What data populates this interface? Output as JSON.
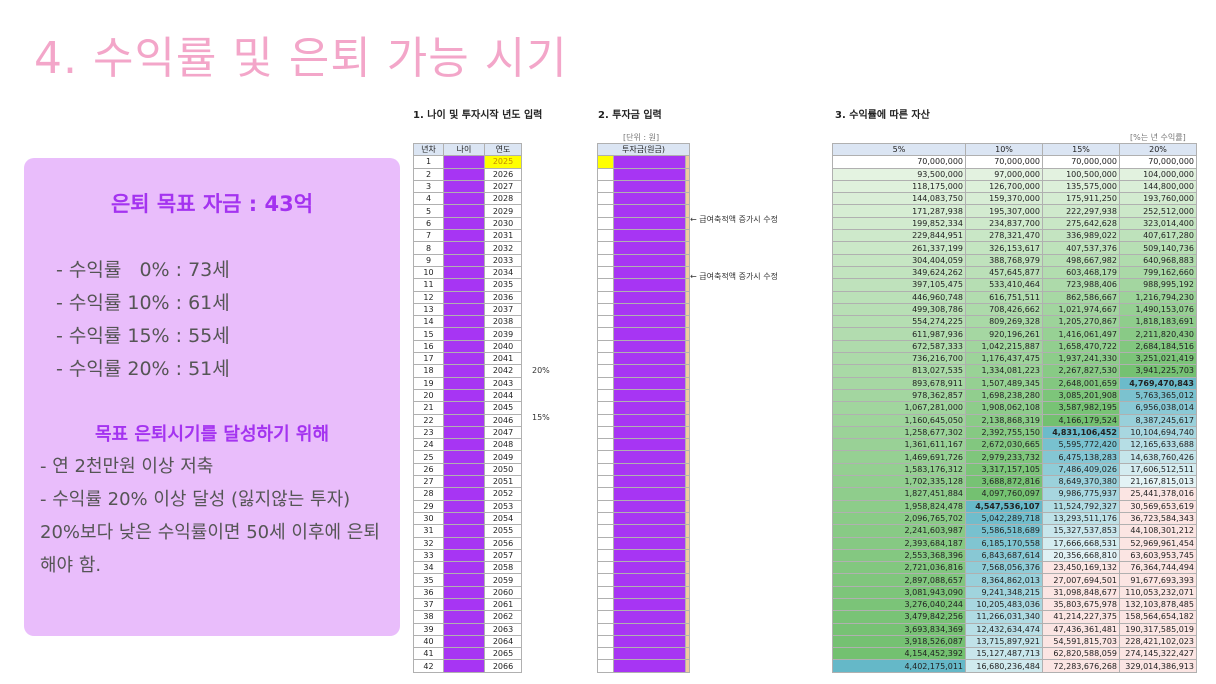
{
  "title": "4. 수익률 및 은퇴 가능 시기",
  "panel": {
    "goal": "은퇴 목표 자금 : 43억",
    "rates": [
      "- 수익률   0% : 73세",
      "- 수익률 10% : 61세",
      "- 수익률 15% : 55세",
      "- 수익률 20% : 51세"
    ],
    "plan_heading": "목표 은퇴시기를 달성하기 위해",
    "plan_line1": "- 연 2천만원 이상 저축",
    "plan_line2": "  - 수익률 20% 이상 달성 (잃지않는 투자) 20%보다 낮은 수익률이면 50세 이후에 은퇴해야 함."
  },
  "sections": {
    "s1": "1. 나이 및 투자시작 년도 입력",
    "s2": "2. 투자금 입력",
    "s3": "3. 수익률에 따른 자산"
  },
  "unit_label": "[단위 : 원]",
  "rate_note": "[%는 년 수익률]",
  "t1_headers": [
    "년차",
    "나이",
    "연도"
  ],
  "t2_header": "투자금(원금)",
  "t3_headers": [
    "5%",
    "10%",
    "15%",
    "20%"
  ],
  "annotations": {
    "a1": "← 급여축적액 증가시 수정",
    "a2": "← 급여축적액 증가시 수정",
    "r20": "20%",
    "r15": "15%"
  },
  "colors": {
    "purple": "#a735f3",
    "yellow": "#ffff00",
    "header": "#dbe5f3",
    "green_light": "#e9f5e6",
    "green_dark": "#72c06f",
    "teal_light": "#e6f4f6",
    "teal_dark": "#63b7c7",
    "red_light": "#fbe5e3"
  },
  "rows": [
    {
      "n": "1",
      "y": "2025",
      "v": [
        "70,000,000",
        "70,000,000",
        "70,000,000",
        "70,000,000"
      ]
    },
    {
      "n": "2",
      "y": "2026",
      "v": [
        "93,500,000",
        "97,000,000",
        "100,500,000",
        "104,000,000"
      ]
    },
    {
      "n": "3",
      "y": "2027",
      "v": [
        "118,175,000",
        "126,700,000",
        "135,575,000",
        "144,800,000"
      ]
    },
    {
      "n": "4",
      "y": "2028",
      "v": [
        "144,083,750",
        "159,370,000",
        "175,911,250",
        "193,760,000"
      ]
    },
    {
      "n": "5",
      "y": "2029",
      "v": [
        "171,287,938",
        "195,307,000",
        "222,297,938",
        "252,512,000"
      ]
    },
    {
      "n": "6",
      "y": "2030",
      "v": [
        "199,852,334",
        "234,837,700",
        "275,642,628",
        "323,014,400"
      ]
    },
    {
      "n": "7",
      "y": "2031",
      "v": [
        "229,844,951",
        "278,321,470",
        "336,989,022",
        "407,617,280"
      ]
    },
    {
      "n": "8",
      "y": "2032",
      "v": [
        "261,337,199",
        "326,153,617",
        "407,537,376",
        "509,140,736"
      ]
    },
    {
      "n": "9",
      "y": "2033",
      "v": [
        "304,404,059",
        "388,768,979",
        "498,667,982",
        "640,968,883"
      ]
    },
    {
      "n": "10",
      "y": "2034",
      "v": [
        "349,624,262",
        "457,645,877",
        "603,468,179",
        "799,162,660"
      ]
    },
    {
      "n": "11",
      "y": "2035",
      "v": [
        "397,105,475",
        "533,410,464",
        "723,988,406",
        "988,995,192"
      ]
    },
    {
      "n": "12",
      "y": "2036",
      "v": [
        "446,960,748",
        "616,751,511",
        "862,586,667",
        "1,216,794,230"
      ]
    },
    {
      "n": "13",
      "y": "2037",
      "v": [
        "499,308,786",
        "708,426,662",
        "1,021,974,667",
        "1,490,153,076"
      ]
    },
    {
      "n": "14",
      "y": "2038",
      "v": [
        "554,274,225",
        "809,269,328",
        "1,205,270,867",
        "1,818,183,691"
      ]
    },
    {
      "n": "15",
      "y": "2039",
      "v": [
        "611,987,936",
        "920,196,261",
        "1,416,061,497",
        "2,211,820,430"
      ]
    },
    {
      "n": "16",
      "y": "2040",
      "v": [
        "672,587,333",
        "1,042,215,887",
        "1,658,470,722",
        "2,684,184,516"
      ]
    },
    {
      "n": "17",
      "y": "2041",
      "v": [
        "736,216,700",
        "1,176,437,475",
        "1,937,241,330",
        "3,251,021,419"
      ]
    },
    {
      "n": "18",
      "y": "2042",
      "v": [
        "813,027,535",
        "1,334,081,223",
        "2,267,827,530",
        "3,941,225,703"
      ]
    },
    {
      "n": "19",
      "y": "2043",
      "v": [
        "893,678,911",
        "1,507,489,345",
        "2,648,001,659",
        "4,769,470,843"
      ]
    },
    {
      "n": "20",
      "y": "2044",
      "v": [
        "978,362,857",
        "1,698,238,280",
        "3,085,201,908",
        "5,763,365,012"
      ]
    },
    {
      "n": "21",
      "y": "2045",
      "v": [
        "1,067,281,000",
        "1,908,062,108",
        "3,587,982,195",
        "6,956,038,014"
      ]
    },
    {
      "n": "22",
      "y": "2046",
      "v": [
        "1,160,645,050",
        "2,138,868,319",
        "4,166,179,524",
        "8,387,245,617"
      ]
    },
    {
      "n": "23",
      "y": "2047",
      "v": [
        "1,258,677,302",
        "2,392,755,150",
        "4,831,106,452",
        "10,104,694,740"
      ]
    },
    {
      "n": "24",
      "y": "2048",
      "v": [
        "1,361,611,167",
        "2,672,030,665",
        "5,595,772,420",
        "12,165,633,688"
      ]
    },
    {
      "n": "25",
      "y": "2049",
      "v": [
        "1,469,691,726",
        "2,979,233,732",
        "6,475,138,283",
        "14,638,760,426"
      ]
    },
    {
      "n": "26",
      "y": "2050",
      "v": [
        "1,583,176,312",
        "3,317,157,105",
        "7,486,409,026",
        "17,606,512,511"
      ]
    },
    {
      "n": "27",
      "y": "2051",
      "v": [
        "1,702,335,128",
        "3,688,872,816",
        "8,649,370,380",
        "21,167,815,013"
      ]
    },
    {
      "n": "28",
      "y": "2052",
      "v": [
        "1,827,451,884",
        "4,097,760,097",
        "9,986,775,937",
        "25,441,378,016"
      ]
    },
    {
      "n": "29",
      "y": "2053",
      "v": [
        "1,958,824,478",
        "4,547,536,107",
        "11,524,792,327",
        "30,569,653,619"
      ]
    },
    {
      "n": "30",
      "y": "2054",
      "v": [
        "2,096,765,702",
        "5,042,289,718",
        "13,293,511,176",
        "36,723,584,343"
      ]
    },
    {
      "n": "31",
      "y": "2055",
      "v": [
        "2,241,603,987",
        "5,586,518,689",
        "15,327,537,853",
        "44,108,301,212"
      ]
    },
    {
      "n": "32",
      "y": "2056",
      "v": [
        "2,393,684,187",
        "6,185,170,558",
        "17,666,668,531",
        "52,969,961,454"
      ]
    },
    {
      "n": "33",
      "y": "2057",
      "v": [
        "2,553,368,396",
        "6,843,687,614",
        "20,356,668,810",
        "63,603,953,745"
      ]
    },
    {
      "n": "34",
      "y": "2058",
      "v": [
        "2,721,036,816",
        "7,568,056,376",
        "23,450,169,132",
        "76,364,744,494"
      ]
    },
    {
      "n": "35",
      "y": "2059",
      "v": [
        "2,897,088,657",
        "8,364,862,013",
        "27,007,694,501",
        "91,677,693,393"
      ]
    },
    {
      "n": "36",
      "y": "2060",
      "v": [
        "3,081,943,090",
        "9,241,348,215",
        "31,098,848,677",
        "110,053,232,071"
      ]
    },
    {
      "n": "37",
      "y": "2061",
      "v": [
        "3,276,040,244",
        "10,205,483,036",
        "35,803,675,978",
        "132,103,878,485"
      ]
    },
    {
      "n": "38",
      "y": "2062",
      "v": [
        "3,479,842,256",
        "11,266,031,340",
        "41,214,227,375",
        "158,564,654,182"
      ]
    },
    {
      "n": "39",
      "y": "2063",
      "v": [
        "3,693,834,369",
        "12,432,634,474",
        "47,436,361,481",
        "190,317,585,019"
      ]
    },
    {
      "n": "40",
      "y": "2064",
      "v": [
        "3,918,526,087",
        "13,715,897,921",
        "54,591,815,703",
        "228,421,102,023"
      ]
    },
    {
      "n": "41",
      "y": "2065",
      "v": [
        "4,154,452,392",
        "15,127,487,713",
        "62,820,588,059",
        "274,145,322,427"
      ]
    },
    {
      "n": "42",
      "y": "2066",
      "v": [
        "4,402,175,011",
        "16,680,236,484",
        "72,283,676,268",
        "329,014,386,913"
      ]
    }
  ]
}
